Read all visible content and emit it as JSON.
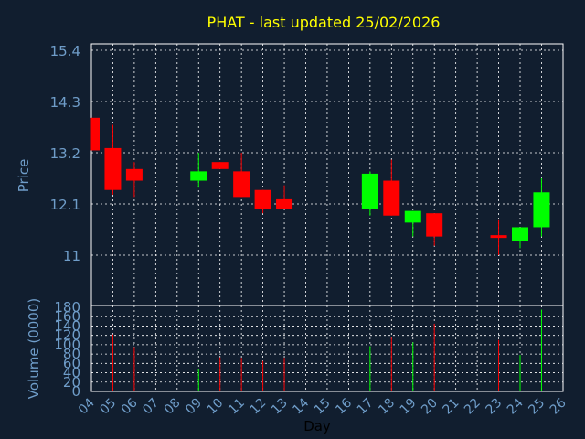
{
  "chart_data": {
    "type": "candlestick",
    "title": "PHAT - last updated 25/02/2026",
    "xlabel": "Day",
    "price_panel": {
      "ylabel": "Price",
      "yticks": [
        "15.4",
        "14.3",
        "13.2",
        "12.1",
        "11"
      ],
      "ylim": [
        10.1,
        15.4
      ]
    },
    "volume_panel": {
      "ylabel": "Volume (0000)",
      "yticks": [
        "180",
        "160",
        "140",
        "120",
        "100",
        "80",
        "60",
        "40",
        "20",
        "0"
      ],
      "ylim": [
        0,
        180
      ]
    },
    "x_ticks": [
      "04",
      "05",
      "06",
      "07",
      "08",
      "09",
      "10",
      "11",
      "12",
      "13",
      "14",
      "15",
      "16",
      "17",
      "18",
      "19",
      "20",
      "21",
      "22",
      "23",
      "24",
      "25",
      "26"
    ],
    "candles": [
      {
        "day": "04",
        "open": 13.95,
        "high": 13.95,
        "low": 13.25,
        "close": 13.25,
        "volume": 0
      },
      {
        "day": "05",
        "open": 13.3,
        "high": 13.8,
        "low": 12.3,
        "close": 12.4,
        "volume": 122
      },
      {
        "day": "06",
        "open": 12.85,
        "high": 13.0,
        "low": 12.25,
        "close": 12.6,
        "volume": 95
      },
      {
        "day": "09",
        "open": 12.6,
        "high": 13.2,
        "low": 12.45,
        "close": 12.8,
        "volume": 48
      },
      {
        "day": "10",
        "open": 13.0,
        "high": 13.0,
        "low": 12.85,
        "close": 12.85,
        "volume": 73
      },
      {
        "day": "11",
        "open": 12.8,
        "high": 13.2,
        "low": 12.25,
        "close": 12.25,
        "volume": 72
      },
      {
        "day": "12",
        "open": 12.4,
        "high": 12.4,
        "low": 11.9,
        "close": 12.0,
        "volume": 65
      },
      {
        "day": "13",
        "open": 12.2,
        "high": 12.5,
        "low": 12.0,
        "close": 12.0,
        "volume": 72
      },
      {
        "day": "17",
        "open": 12.0,
        "high": 12.8,
        "low": 11.85,
        "close": 12.75,
        "volume": 97
      },
      {
        "day": "18",
        "open": 12.6,
        "high": 13.05,
        "low": 11.85,
        "close": 11.85,
        "volume": 115
      },
      {
        "day": "19",
        "open": 11.7,
        "high": 11.95,
        "low": 11.4,
        "close": 11.95,
        "volume": 105
      },
      {
        "day": "20",
        "open": 11.9,
        "high": 11.9,
        "low": 11.2,
        "close": 11.4,
        "volume": 145
      },
      {
        "day": "23",
        "open": 11.4,
        "high": 11.75,
        "low": 11.0,
        "close": 11.4,
        "volume": 110
      },
      {
        "day": "24",
        "open": 11.3,
        "high": 11.6,
        "low": 11.15,
        "close": 11.6,
        "volume": 78
      },
      {
        "day": "25",
        "open": 11.6,
        "high": 12.65,
        "low": 11.4,
        "close": 12.35,
        "volume": 175
      }
    ],
    "colors": {
      "up": "#00ff00",
      "down": "#ff0000",
      "background": "#111e2f",
      "grid": "#ffffff",
      "axis_text": "#6f9dc9",
      "title_text": "#ffff00"
    },
    "grid": true
  }
}
